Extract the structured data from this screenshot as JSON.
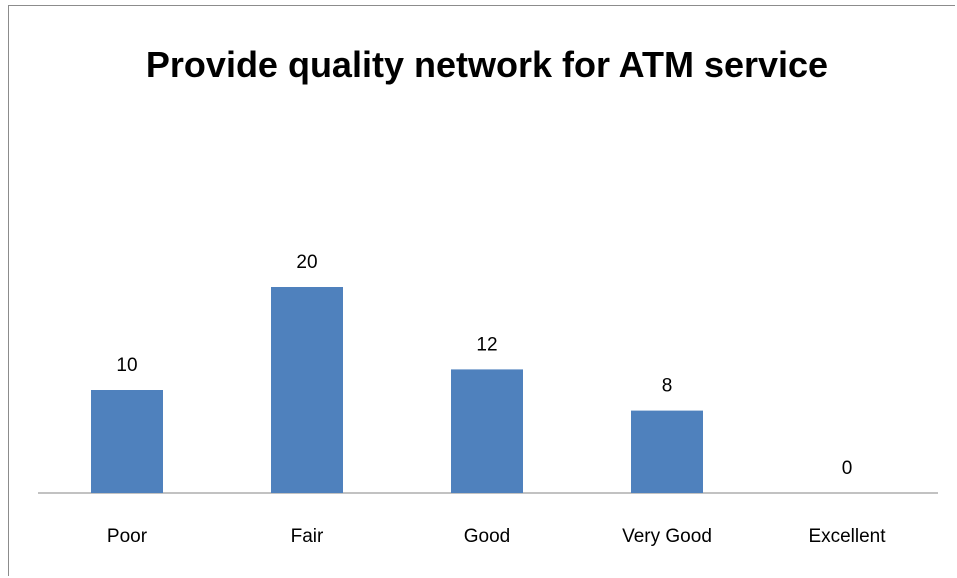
{
  "chart_data": {
    "type": "bar",
    "title": "Provide quality network for ATM service",
    "categories": [
      "Poor",
      "Fair",
      "Good",
      "Very Good",
      "Excellent"
    ],
    "values": [
      10,
      20,
      12,
      8,
      0
    ],
    "color": "#4f81bd"
  }
}
